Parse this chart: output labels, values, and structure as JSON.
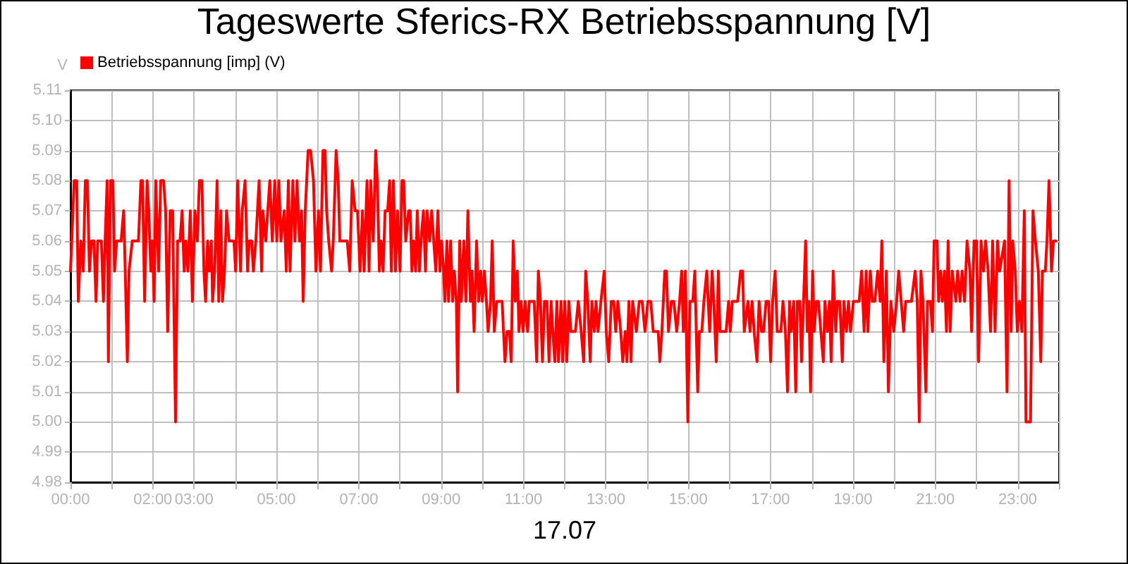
{
  "chart_data": {
    "type": "line",
    "title": "Tageswerte Sferics-RX Betriebsspannung [V]",
    "xlabel": "17.07",
    "ylabel": "V",
    "x": [
      0,
      0.09,
      0.15,
      0.19,
      0.25,
      0.31,
      0.36,
      0.41,
      0.46,
      0.51,
      0.57,
      0.62,
      0.66,
      0.75,
      0.8,
      0.84,
      0.89,
      0.92,
      0.97,
      1.03,
      1.07,
      1.12,
      1.23,
      1.29,
      1.33,
      1.38,
      1.42,
      1.5,
      1.65,
      1.71,
      1.75,
      1.8,
      1.86,
      1.9,
      1.95,
      1.99,
      2.03,
      2.07,
      2.14,
      2.19,
      2.26,
      2.31,
      2.36,
      2.42,
      2.48,
      2.55,
      2.6,
      2.66,
      2.71,
      2.76,
      2.8,
      2.85,
      2.91,
      2.96,
      3.02,
      3.08,
      3.13,
      3.19,
      3.24,
      3.28,
      3.33,
      3.37,
      3.42,
      3.45,
      3.5,
      3.56,
      3.6,
      3.65,
      3.69,
      3.74,
      3.79,
      3.85,
      3.97,
      4.01,
      4.06,
      4.13,
      4.17,
      4.24,
      4.3,
      4.34,
      4.4,
      4.44,
      4.5,
      4.58,
      4.64,
      4.67,
      4.74,
      4.79,
      4.84,
      4.9,
      4.96,
      5.01,
      5.06,
      5.11,
      5.19,
      5.24,
      5.29,
      5.33,
      5.4,
      5.45,
      5.5,
      5.56,
      5.61,
      5.65,
      5.7,
      5.77,
      5.83,
      5.9,
      5.96,
      6.02,
      6.07,
      6.13,
      6.18,
      6.22,
      6.27,
      6.34,
      6.38,
      6.45,
      6.5,
      6.54,
      6.63,
      6.72,
      6.78,
      6.84,
      6.91,
      6.97,
      7.03,
      7.09,
      7.13,
      7.2,
      7.25,
      7.29,
      7.35,
      7.41,
      7.45,
      7.5,
      7.54,
      7.59,
      7.64,
      7.7,
      7.75,
      7.79,
      7.84,
      7.89,
      7.94,
      8,
      8.05,
      8.09,
      8.14,
      8.21,
      8.25,
      8.29,
      8.33,
      8.38,
      8.42,
      8.47,
      8.51,
      8.57,
      8.62,
      8.66,
      8.72,
      8.77,
      8.82,
      8.87,
      8.92,
      8.97,
      9.01,
      9.06,
      9.09,
      9.14,
      9.18,
      9.23,
      9.28,
      9.32,
      9.37,
      9.4,
      9.45,
      9.49,
      9.55,
      9.6,
      9.65,
      9.71,
      9.75,
      9.8,
      9.86,
      9.91,
      9.96,
      10,
      10.05,
      10.1,
      10.14,
      10.2,
      10.24,
      10.29,
      10.35,
      10.48,
      10.55,
      10.6,
      10.66,
      10.7,
      10.75,
      10.8,
      10.85,
      10.89,
      10.94,
      10.99,
      11.04,
      11.1,
      11.14,
      11.26,
      11.32,
      11.36,
      11.41,
      11.46,
      11.51,
      11.57,
      11.62,
      11.67,
      11.71,
      11.76,
      11.81,
      11.85,
      11.91,
      11.95,
      12,
      12.05,
      12.1,
      12.15,
      12.26,
      12.33,
      12.4,
      12.46,
      12.51,
      12.56,
      12.62,
      12.66,
      12.72,
      12.76,
      12.81,
      12.88,
      12.96,
      13.01,
      13.07,
      13.13,
      13.19,
      13.24,
      13.29,
      13.36,
      13.41,
      13.47,
      13.51,
      13.56,
      13.61,
      13.65,
      13.74,
      13.81,
      13.88,
      13.95,
      14.02,
      14.09,
      14.15,
      14.27,
      14.31,
      14.36,
      14.43,
      14.47,
      14.52,
      14.59,
      14.65,
      14.72,
      14.79,
      14.84,
      14.88,
      14.93,
      14.99,
      15.04,
      15.11,
      15.16,
      15.23,
      15.27,
      15.33,
      15.38,
      15.45,
      15.52,
      15.58,
      15.62,
      15.68,
      15.73,
      15.77,
      15.84,
      15.92,
      15.98,
      16.02,
      16.07,
      16.14,
      16.2,
      16.27,
      16.32,
      16.36,
      16.45,
      16.5,
      16.55,
      16.6,
      16.67,
      16.72,
      16.78,
      16.83,
      16.89,
      16.95,
      17,
      17.05,
      17.11,
      17.16,
      17.25,
      17.3,
      17.36,
      17.41,
      17.46,
      17.5,
      17.56,
      17.61,
      17.65,
      17.71,
      17.75,
      17.8,
      17.85,
      17.89,
      17.93,
      17.97,
      18.02,
      18.06,
      18.11,
      18.16,
      18.22,
      18.28,
      18.32,
      18.38,
      18.43,
      18.47,
      18.52,
      18.58,
      18.62,
      18.68,
      18.74,
      18.78,
      18.84,
      18.89,
      18.94,
      19.01,
      19.08,
      19.15,
      19.21,
      19.27,
      19.32,
      19.36,
      19.42,
      19.47,
      19.53,
      19.6,
      19.66,
      19.7,
      19.75,
      19.81,
      19.86,
      19.92,
      19.99,
      20.06,
      20.11,
      20.17,
      20.23,
      20.28,
      20.42,
      20.51,
      20.56,
      20.61,
      20.65,
      20.7,
      20.77,
      20.81,
      20.88,
      20.93,
      20.97,
      21.04,
      21.08,
      21.13,
      21.17,
      21.22,
      21.27,
      21.31,
      21.36,
      21.41,
      21.5,
      21.54,
      21.6,
      21.65,
      21.71,
      21.77,
      21.84,
      21.88,
      21.94,
      22,
      22.05,
      22.11,
      22.17,
      22.22,
      22.28,
      22.34,
      22.39,
      22.45,
      22.51,
      22.56,
      22.68,
      22.74,
      22.79,
      22.84,
      22.88,
      22.94,
      22.99,
      23.04,
      23.1,
      23.16,
      23.2,
      23.31,
      23.37,
      23.43,
      23.5,
      23.56,
      23.6,
      23.67,
      23.71,
      23.76,
      23.82,
      23.87,
      23.93
    ],
    "series": [
      {
        "name": "Betriebsspannung [imp] (V)",
        "color": "#ff0000",
        "values": [
          5.05,
          5.08,
          5.08,
          5.04,
          5.06,
          5.05,
          5.08,
          5.08,
          5.05,
          5.06,
          5.06,
          5.04,
          5.06,
          5.06,
          5.04,
          5.06,
          5.08,
          5.02,
          5.08,
          5.08,
          5.05,
          5.06,
          5.06,
          5.07,
          5.05,
          5.02,
          5.05,
          5.06,
          5.06,
          5.08,
          5.08,
          5.04,
          5.08,
          5.07,
          5.05,
          5.06,
          5.04,
          5.08,
          5.05,
          5.08,
          5.08,
          5.07,
          5.03,
          5.07,
          5.07,
          5,
          5.06,
          5.06,
          5.07,
          5.05,
          5.06,
          5.05,
          5.07,
          5.04,
          5.07,
          5.06,
          5.08,
          5.08,
          5.05,
          5.04,
          5.06,
          5.05,
          5.06,
          5.04,
          5.05,
          5.08,
          5.04,
          5.07,
          5.04,
          5.05,
          5.07,
          5.06,
          5.06,
          5.05,
          5.08,
          5.05,
          5.07,
          5.08,
          5.05,
          5.06,
          5.06,
          5.05,
          5.06,
          5.08,
          5.05,
          5.07,
          5.06,
          5.07,
          5.08,
          5.06,
          5.08,
          5.06,
          5.08,
          5.06,
          5.07,
          5.05,
          5.08,
          5.05,
          5.08,
          5.06,
          5.08,
          5.06,
          5.07,
          5.04,
          5.07,
          5.09,
          5.09,
          5.08,
          5.05,
          5.07,
          5.05,
          5.09,
          5.09,
          5.07,
          5.06,
          5.05,
          5.06,
          5.09,
          5.08,
          5.06,
          5.06,
          5.06,
          5.05,
          5.08,
          5.07,
          5.07,
          5.05,
          5.07,
          5.05,
          5.08,
          5.05,
          5.08,
          5.06,
          5.09,
          5.08,
          5.05,
          5.06,
          5.05,
          5.07,
          5.07,
          5.08,
          5.05,
          5.08,
          5.05,
          5.07,
          5.05,
          5.08,
          5.08,
          5.06,
          5.07,
          5.07,
          5.05,
          5.06,
          5.05,
          5.07,
          5.05,
          5.06,
          5.07,
          5.05,
          5.07,
          5.06,
          5.07,
          5.06,
          5.05,
          5.07,
          5.05,
          5.06,
          5.05,
          5.04,
          5.06,
          5.04,
          5.06,
          5.04,
          5.05,
          5.04,
          5.01,
          5.06,
          5.04,
          5.06,
          5.04,
          5.07,
          5.04,
          5.05,
          5.03,
          5.06,
          5.04,
          5.05,
          5.04,
          5.05,
          5.04,
          5.03,
          5.04,
          5.06,
          5.03,
          5.04,
          5.04,
          5.02,
          5.03,
          5.03,
          5.02,
          5.06,
          5.04,
          5.05,
          5.03,
          5.04,
          5.03,
          5.04,
          5.03,
          5.04,
          5.04,
          5.02,
          5.05,
          5.04,
          5.02,
          5.04,
          5.04,
          5.02,
          5.04,
          5.03,
          5.02,
          5.04,
          5.02,
          5.04,
          5.02,
          5.04,
          5.02,
          5.04,
          5.03,
          5.03,
          5.04,
          5.03,
          5.02,
          5.05,
          5.04,
          5.02,
          5.04,
          5.03,
          5.04,
          5.03,
          5.04,
          5.05,
          5.03,
          5.02,
          5.04,
          5.04,
          5.03,
          5.04,
          5.03,
          5.02,
          5.03,
          5.02,
          5.04,
          5.02,
          5.04,
          5.03,
          5.04,
          5.04,
          5.03,
          5.04,
          5.04,
          5.03,
          5.03,
          5.02,
          5.03,
          5.05,
          5.05,
          5.03,
          5.04,
          5.04,
          5.03,
          5.04,
          5.05,
          5.03,
          5.05,
          5,
          5.04,
          5.04,
          5.05,
          5.01,
          5.03,
          5.03,
          5.04,
          5.05,
          5.03,
          5.05,
          5.04,
          5.02,
          5.05,
          5.03,
          5.03,
          5.03,
          5.04,
          5.03,
          5.04,
          5.04,
          5.04,
          5.05,
          5.05,
          5.03,
          5.04,
          5.03,
          5.04,
          5.03,
          5.02,
          5.04,
          5.03,
          5.03,
          5.04,
          5.04,
          5.02,
          5.04,
          5.05,
          5.03,
          5.03,
          5.04,
          5.03,
          5.01,
          5.04,
          5.03,
          5.04,
          5.01,
          5.04,
          5.04,
          5.02,
          5.04,
          5.06,
          5.03,
          5.04,
          5.01,
          5.05,
          5.03,
          5.04,
          5.04,
          5.03,
          5.02,
          5.04,
          5.03,
          5.04,
          5.02,
          5.05,
          5.03,
          5.04,
          5.04,
          5.02,
          5.04,
          5.03,
          5.04,
          5.03,
          5.04,
          5.04,
          5.04,
          5.05,
          5.03,
          5.05,
          5.03,
          5.05,
          5.04,
          5.04,
          5.05,
          5.04,
          5.06,
          5.02,
          5.05,
          5.01,
          5.04,
          5.03,
          5.04,
          5.05,
          5.04,
          5.03,
          5.04,
          5.04,
          5.05,
          5.04,
          5,
          5.05,
          5.04,
          5.01,
          5.04,
          5.04,
          5.03,
          5.06,
          5.06,
          5.04,
          5.05,
          5.04,
          5.05,
          5.03,
          5.06,
          5.03,
          5.05,
          5.04,
          5.05,
          5.04,
          5.05,
          5.04,
          5.06,
          5.05,
          5.03,
          5.06,
          5.06,
          5.02,
          5.06,
          5.05,
          5.06,
          5.05,
          5.03,
          5.06,
          5.03,
          5.06,
          5.05,
          5.06,
          5.01,
          5.08,
          5.03,
          5.06,
          5.05,
          5.03,
          5.04,
          5.03,
          5.07,
          5,
          5,
          5.07,
          5.06,
          5.05,
          5.02,
          5.05,
          5.05,
          5.06,
          5.08,
          5.05,
          5.06,
          5.06
        ]
      }
    ],
    "xlim": [
      0,
      24
    ],
    "xticks": [
      {
        "value": 0,
        "label": "00:00"
      },
      {
        "value": 1,
        "label": null
      },
      {
        "value": 2,
        "label": "02:00"
      },
      {
        "value": 3,
        "label": "03:00"
      },
      {
        "value": 4,
        "label": null
      },
      {
        "value": 5,
        "label": "05:00"
      },
      {
        "value": 6,
        "label": null
      },
      {
        "value": 7,
        "label": "07:00"
      },
      {
        "value": 8,
        "label": null
      },
      {
        "value": 9,
        "label": "09:00"
      },
      {
        "value": 10,
        "label": null
      },
      {
        "value": 11,
        "label": "11:00"
      },
      {
        "value": 12,
        "label": null
      },
      {
        "value": 13,
        "label": "13:00"
      },
      {
        "value": 14,
        "label": null
      },
      {
        "value": 15,
        "label": "15:00"
      },
      {
        "value": 16,
        "label": null
      },
      {
        "value": 17,
        "label": "17:00"
      },
      {
        "value": 18,
        "label": null
      },
      {
        "value": 19,
        "label": "19:00"
      },
      {
        "value": 20,
        "label": null
      },
      {
        "value": 21,
        "label": "21:00"
      },
      {
        "value": 22,
        "label": null
      },
      {
        "value": 23,
        "label": "23:00"
      },
      {
        "value": 24,
        "label": null
      }
    ],
    "ylim": [
      4.98,
      5.11
    ],
    "yticks": [
      4.98,
      4.99,
      {
        "value": 5,
        "label": "5.00"
      },
      5.01,
      5.02,
      5.03,
      5.04,
      5.05,
      5.06,
      5.07,
      5.08,
      5.09,
      {
        "value": 5.1,
        "label": "5.10"
      },
      5.11
    ],
    "grid": true,
    "legend": "top left",
    "marker": "none",
    "line_style": "solid"
  }
}
